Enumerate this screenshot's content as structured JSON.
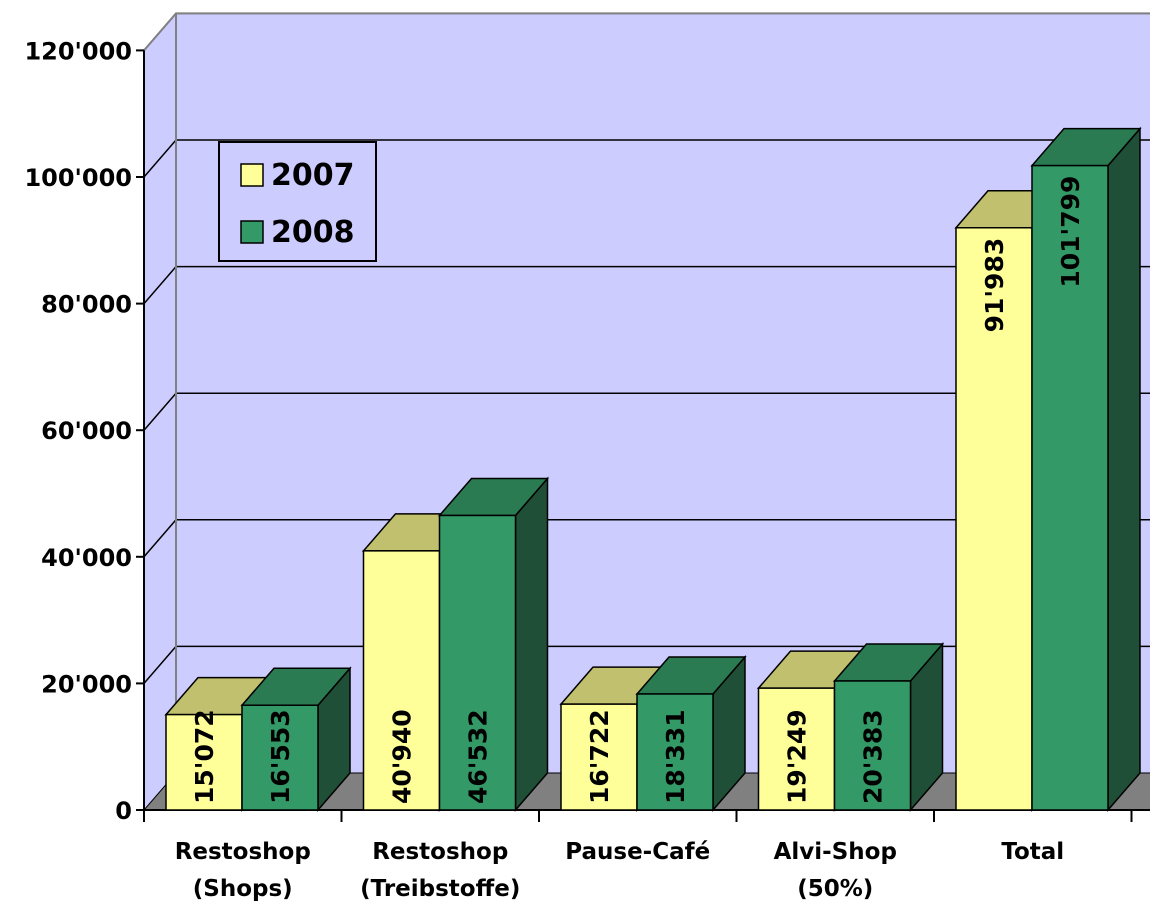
{
  "chart_data": {
    "type": "bar",
    "title": "",
    "xlabel": "",
    "ylabel": "",
    "categories": [
      [
        "Restoshop",
        "(Shops)"
      ],
      [
        "Restoshop",
        "(Treibstoffe)"
      ],
      [
        "Pause-Café"
      ],
      [
        "Alvi-Shop",
        "(50%)"
      ],
      [
        "Total"
      ]
    ],
    "series": [
      {
        "name": "2007",
        "values": [
          15072,
          40940,
          16722,
          19249,
          91983
        ],
        "value_labels": [
          "15'072",
          "40'940",
          "16'722",
          "19'249",
          "91'983"
        ],
        "color_front": "#ffff99",
        "color_top": "#c0c06e",
        "color_side": "#9a9a55"
      },
      {
        "name": "2008",
        "values": [
          16553,
          46532,
          18331,
          20383,
          101799
        ],
        "value_labels": [
          "16'553",
          "46'532",
          "18'331",
          "20'383",
          "101'799"
        ],
        "color_front": "#339966",
        "color_top": "#2a7a52",
        "color_side": "#1f4f36"
      }
    ],
    "ylim": [
      0,
      120000
    ],
    "yticks": [
      0,
      20000,
      40000,
      60000,
      80000,
      100000,
      120000
    ],
    "ytick_labels": [
      "0",
      "20'000",
      "40'000",
      "60'000",
      "80'000",
      "100'000",
      "120'000"
    ],
    "grid": true,
    "legend_position": "top-left",
    "wall_color": "#ccccff",
    "floor_color": "#808080"
  }
}
